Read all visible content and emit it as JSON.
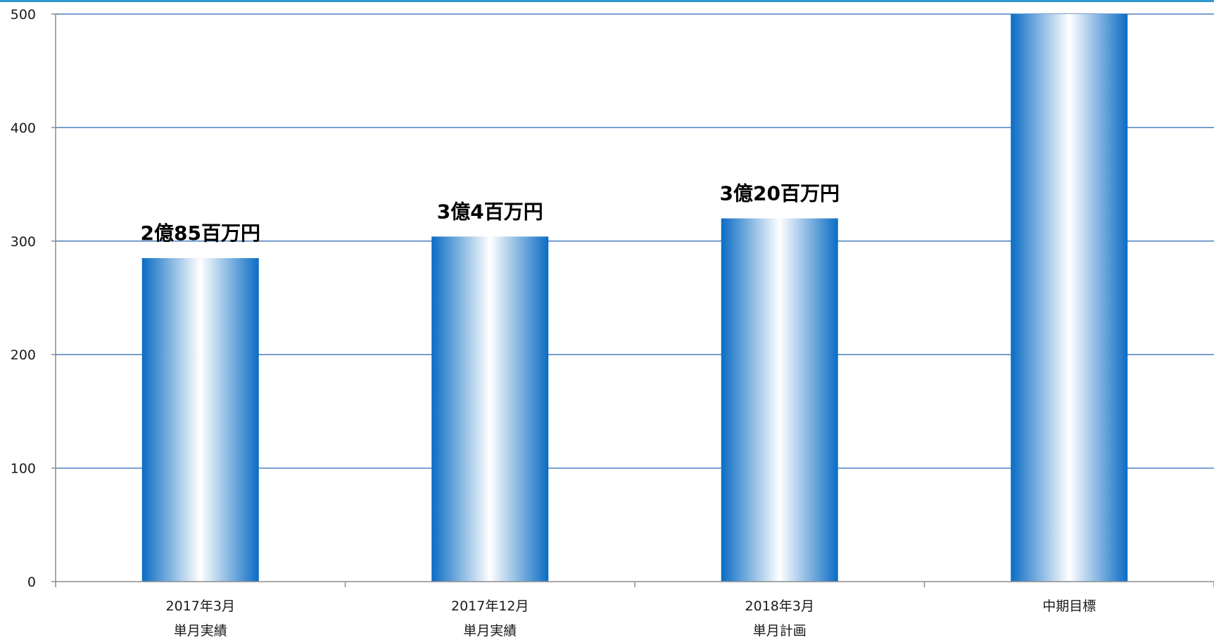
{
  "chart_data": {
    "type": "bar",
    "categories": [
      {
        "lines": [
          "2017年3月",
          "単月実績"
        ]
      },
      {
        "lines": [
          "2017年12月",
          "単月実績"
        ]
      },
      {
        "lines": [
          "2018年3月",
          "単月計画"
        ]
      },
      {
        "lines": [
          "中期目標"
        ]
      }
    ],
    "values": [
      285,
      304,
      320,
      500
    ],
    "data_labels": [
      "2億85百万円",
      "3億4百万円",
      "3億20百万円",
      ""
    ],
    "ylim": [
      0,
      500
    ],
    "yticks": [
      0,
      100,
      200,
      300,
      400,
      500
    ],
    "grid": true,
    "colors": {
      "bar_edge": "#0a6cc4",
      "bar_center": "#ffffff",
      "gridline": "#4a7fc1",
      "axis": "#8c8c8c",
      "top_border": "#2e9bd1"
    }
  }
}
